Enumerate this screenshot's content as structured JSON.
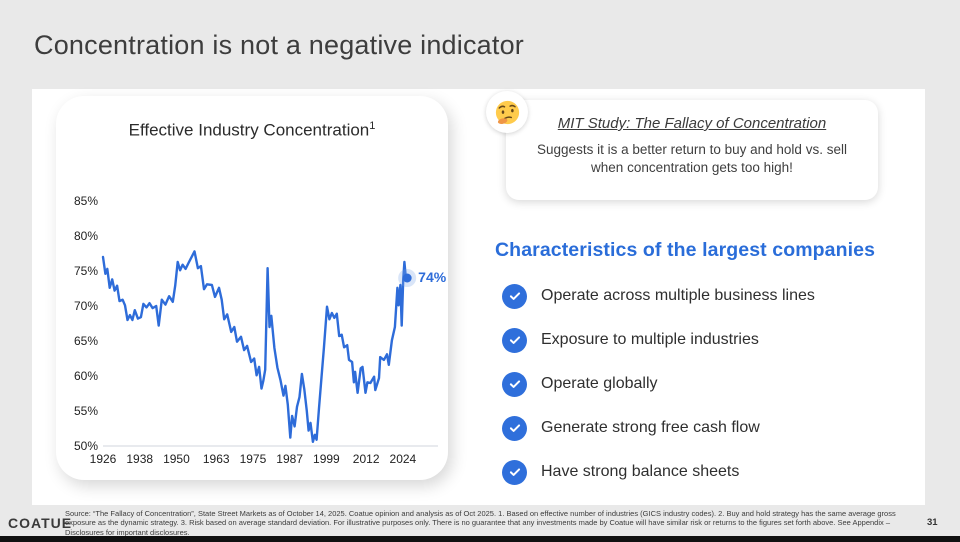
{
  "slide": {
    "title": "Concentration is not a negative indicator",
    "page_number": "31",
    "brand": "COATUE",
    "footer_source": "Source: “The Fallacy of Concentration”, State Street Markets as of October 14, 2025. Coatue opinion and analysis as of Oct 2025. 1. Based on effective number of industries (GICS industry codes). 2. Buy and hold strategy has the same average gross exposure as the dynamic strategy. 3. Risk based on average standard deviation.  For illustrative purposes only.  There is no guarantee that any investments made by Coatue will have similar risk or returns to the figures set forth above.  See Appendix – Disclosures for important disclosures."
  },
  "chart_card": {
    "title": "Effective Industry Concentration",
    "title_superscript": "1",
    "end_label": "74%"
  },
  "callout": {
    "emoji": "thinking-face",
    "title": "MIT Study: The Fallacy of Concentration",
    "body": "Suggests it is a better return to buy and hold vs. sell when concentration gets too high!"
  },
  "characteristics": {
    "heading": "Characteristics of the largest companies",
    "items": [
      {
        "icon": "check-icon",
        "label": "Operate across multiple business lines"
      },
      {
        "icon": "check-icon",
        "label": "Exposure to multiple industries"
      },
      {
        "icon": "check-icon",
        "label": "Operate globally"
      },
      {
        "icon": "check-icon",
        "label": "Generate strong free cash flow"
      },
      {
        "icon": "check-icon",
        "label": "Have strong balance sheets"
      }
    ]
  },
  "colors": {
    "accent_blue": "#2e6cd9",
    "check_blue": "#2f6fdb",
    "background_gray": "#e9e9e9",
    "baseline_gray": "#d9dde3",
    "title_gray": "#3d3d3d"
  },
  "chart_data": {
    "type": "line",
    "title": "Effective Industry Concentration",
    "xlabel": "",
    "ylabel": "",
    "x_ticks": [
      1926,
      1938,
      1950,
      1963,
      1975,
      1987,
      1999,
      2012,
      2024
    ],
    "y_ticks": [
      85,
      80,
      75,
      70,
      65,
      60,
      55,
      50
    ],
    "y_tick_suffix": "%",
    "xlim": [
      1926,
      2025.5
    ],
    "ylim": [
      50,
      85
    ],
    "grid": false,
    "legend": "none",
    "end_annotation": {
      "label": "74%",
      "x": 2025.4,
      "y": 74
    },
    "series": [
      {
        "name": "Effective Industry Concentration",
        "points": [
          [
            1926,
            77.0
          ],
          [
            1926.8,
            74.6
          ],
          [
            1927.4,
            75.3
          ],
          [
            1928.2,
            72.6
          ],
          [
            1929,
            73.8
          ],
          [
            1929.8,
            72.2
          ],
          [
            1930.6,
            72.9
          ],
          [
            1931.4,
            70.7
          ],
          [
            1932.4,
            70.9
          ],
          [
            1933.2,
            70.1
          ],
          [
            1934,
            68.0
          ],
          [
            1934.8,
            68.7
          ],
          [
            1935.6,
            68.0
          ],
          [
            1936.4,
            69.4
          ],
          [
            1937.4,
            68.2
          ],
          [
            1938.4,
            68.4
          ],
          [
            1939.2,
            70.3
          ],
          [
            1940.2,
            69.8
          ],
          [
            1941.2,
            70.4
          ],
          [
            1942.2,
            69.7
          ],
          [
            1943.4,
            70.0
          ],
          [
            1944.2,
            67.2
          ],
          [
            1945.2,
            70.9
          ],
          [
            1946.4,
            70.2
          ],
          [
            1947.6,
            71.4
          ],
          [
            1948.8,
            70.6
          ],
          [
            1949.6,
            72.9
          ],
          [
            1950.4,
            76.3
          ],
          [
            1951.2,
            75.1
          ],
          [
            1952,
            75.9
          ],
          [
            1953,
            75.3
          ],
          [
            1954,
            76.2
          ],
          [
            1955.9,
            77.8
          ],
          [
            1957,
            75.4
          ],
          [
            1958,
            75.7
          ],
          [
            1959,
            72.4
          ],
          [
            1960,
            73.1
          ],
          [
            1961.6,
            73.0
          ],
          [
            1962.6,
            71.3
          ],
          [
            1963.9,
            72.6
          ],
          [
            1964.8,
            70.9
          ],
          [
            1965.6,
            68.1
          ],
          [
            1966.6,
            68.8
          ],
          [
            1967.9,
            66.3
          ],
          [
            1968.9,
            67.0
          ],
          [
            1969.8,
            64.9
          ],
          [
            1971.1,
            65.6
          ],
          [
            1972.1,
            63.7
          ],
          [
            1973.1,
            64.3
          ],
          [
            1974.4,
            62.0
          ],
          [
            1975.4,
            62.5
          ],
          [
            1976.2,
            60.1
          ],
          [
            1977,
            61.3
          ],
          [
            1977.8,
            58.2
          ],
          [
            1978.4,
            59.3
          ],
          [
            1979,
            60.9
          ],
          [
            1979.8,
            75.4
          ],
          [
            1980.4,
            67.0
          ],
          [
            1981,
            68.6
          ],
          [
            1982,
            64.0
          ],
          [
            1983,
            61.2
          ],
          [
            1984,
            59.4
          ],
          [
            1985,
            57.2
          ],
          [
            1985.6,
            58.6
          ],
          [
            1986.4,
            55.9
          ],
          [
            1987.2,
            51.2
          ],
          [
            1987.8,
            54.3
          ],
          [
            1988.6,
            52.8
          ],
          [
            1989.4,
            55.6
          ],
          [
            1990.2,
            57.0
          ],
          [
            1991,
            60.3
          ],
          [
            1991.8,
            58.1
          ],
          [
            1992.6,
            55.0
          ],
          [
            1993.2,
            52.2
          ],
          [
            1993.8,
            53.3
          ],
          [
            1994.6,
            50.6
          ],
          [
            1995.2,
            51.6
          ],
          [
            1995.8,
            50.9
          ],
          [
            1996.6,
            55.4
          ],
          [
            1997.4,
            59.8
          ],
          [
            1998.2,
            64.0
          ],
          [
            1999.2,
            69.9
          ],
          [
            2000,
            68.1
          ],
          [
            2000.8,
            69.0
          ],
          [
            2001.6,
            68.3
          ],
          [
            2002.4,
            68.9
          ],
          [
            2003.2,
            65.7
          ],
          [
            2004,
            65.9
          ],
          [
            2004.8,
            64.1
          ],
          [
            2005.8,
            64.4
          ],
          [
            2006.4,
            62.3
          ],
          [
            2007.4,
            62.0
          ],
          [
            2008,
            59.1
          ],
          [
            2008.4,
            60.6
          ],
          [
            2009.2,
            57.6
          ],
          [
            2010.2,
            61.1
          ],
          [
            2010.8,
            61.3
          ],
          [
            2011.8,
            57.6
          ],
          [
            2012.4,
            59.1
          ],
          [
            2013.4,
            59.0
          ],
          [
            2014.6,
            59.9
          ],
          [
            2015,
            58.0
          ],
          [
            2016.2,
            59.7
          ],
          [
            2016.6,
            62.7
          ],
          [
            2017.8,
            62.3
          ],
          [
            2018.8,
            63.1
          ],
          [
            2019.4,
            61.6
          ],
          [
            2020.4,
            65.1
          ],
          [
            2021.4,
            67.0
          ],
          [
            2022.2,
            72.6
          ],
          [
            2022.6,
            70.1
          ],
          [
            2023.2,
            73.0
          ],
          [
            2023.6,
            67.2
          ],
          [
            2024.1,
            73.7
          ],
          [
            2024.5,
            76.3
          ],
          [
            2024.9,
            74.4
          ],
          [
            2025.4,
            74.0
          ]
        ]
      }
    ]
  }
}
